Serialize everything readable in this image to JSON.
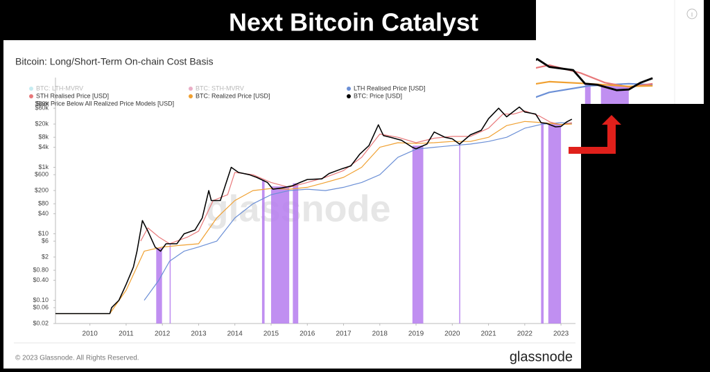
{
  "header": {
    "title": "Next Bitcoin Catalyst"
  },
  "chart_data": {
    "type": "line",
    "title": "Bitcoin: Long/Short-Term On-chain Cost Basis",
    "log_y": true,
    "grid": false,
    "xlim": [
      2009.05,
      2023.4
    ],
    "xticks": [
      2010,
      2011,
      2012,
      2013,
      2014,
      2015,
      2016,
      2017,
      2018,
      2019,
      2020,
      2021,
      2022,
      2023
    ],
    "ylim": [
      0.02,
      500000
    ],
    "yticks": [
      {
        "value": 0.02,
        "label": "$0.02"
      },
      {
        "value": 0.06,
        "label": "$0.06"
      },
      {
        "value": 0.1,
        "label": "$0.10"
      },
      {
        "value": 0.4,
        "label": "$0.40"
      },
      {
        "value": 0.8,
        "label": "$0.80"
      },
      {
        "value": 2,
        "label": "$2"
      },
      {
        "value": 6,
        "label": "$6"
      },
      {
        "value": 10,
        "label": "$10"
      },
      {
        "value": 40,
        "label": "$40"
      },
      {
        "value": 80,
        "label": "$80"
      },
      {
        "value": 200,
        "label": "$200"
      },
      {
        "value": 600,
        "label": "$600"
      },
      {
        "value": 1000,
        "label": "$1k"
      },
      {
        "value": 4000,
        "label": "$4k"
      },
      {
        "value": 8000,
        "label": "$8k"
      },
      {
        "value": 20000,
        "label": "$20k"
      },
      {
        "value": 60000,
        "label": "$60k"
      },
      {
        "value": 80000,
        "label": "$80k"
      }
    ],
    "inactive_legend": [
      {
        "name": "BTC: LTH-MVRV",
        "color": "#5bc8d8"
      },
      {
        "name": "BTC: STH-MVRV",
        "color": "#c2185b"
      }
    ],
    "series": [
      {
        "name": "LTH Realised Price [USD]",
        "color": "#6b8fd6",
        "x": [
          2011.5,
          2011.9,
          2012.2,
          2012.6,
          2013.0,
          2013.5,
          2014.0,
          2014.5,
          2015.0,
          2015.5,
          2016.0,
          2016.5,
          2017.0,
          2017.5,
          2018.0,
          2018.5,
          2019.0,
          2019.5,
          2020.0,
          2020.5,
          2021.0,
          2021.5,
          2022.0,
          2022.5,
          2023.0,
          2023.3
        ],
        "values": [
          0.1,
          0.4,
          1.5,
          3,
          4,
          6,
          30,
          80,
          150,
          200,
          220,
          200,
          250,
          350,
          600,
          2000,
          3500,
          4000,
          4500,
          5000,
          6000,
          8000,
          15000,
          20000,
          22000,
          21000
        ]
      },
      {
        "name": "STH Realised Price [USD]",
        "color": "#e8787a",
        "x": [
          2011.4,
          2011.6,
          2011.9,
          2012.2,
          2012.7,
          2013.0,
          2013.4,
          2013.8,
          2014.0,
          2014.5,
          2015.0,
          2015.5,
          2016.0,
          2016.5,
          2017.0,
          2017.5,
          2018.0,
          2018.5,
          2019.0,
          2019.5,
          2020.0,
          2020.5,
          2021.0,
          2021.4,
          2021.7,
          2022.0,
          2022.4,
          2022.7,
          2023.0,
          2023.3
        ],
        "values": [
          6,
          15,
          8,
          5,
          8,
          12,
          100,
          150,
          700,
          600,
          350,
          250,
          350,
          500,
          800,
          2000,
          10000,
          8000,
          5500,
          7500,
          8500,
          8500,
          15000,
          40000,
          40000,
          50000,
          35000,
          23000,
          19000,
          22000
        ]
      },
      {
        "name": "BTC: Realized Price [USD]",
        "color": "#f0a030",
        "x": [
          2009.05,
          2010.55,
          2011.0,
          2011.5,
          2012.0,
          2012.5,
          2013.0,
          2013.5,
          2014.0,
          2014.5,
          2015.0,
          2015.5,
          2016.0,
          2016.5,
          2017.0,
          2017.5,
          2018.0,
          2018.5,
          2019.0,
          2019.5,
          2020.0,
          2020.5,
          2021.0,
          2021.5,
          2022.0,
          2022.5,
          2023.0,
          2023.3
        ],
        "values": [
          0.04,
          0.04,
          0.2,
          3,
          4,
          4.5,
          5,
          30,
          100,
          200,
          230,
          220,
          250,
          350,
          500,
          1000,
          4000,
          5500,
          5200,
          5500,
          6000,
          6000,
          8000,
          18000,
          24000,
          22000,
          19500,
          20000
        ]
      },
      {
        "name": "BTC: Price [USD]",
        "color": "#000000",
        "x": [
          2009.05,
          2010.55,
          2010.6,
          2010.8,
          2011.0,
          2011.2,
          2011.3,
          2011.45,
          2011.6,
          2011.8,
          2011.95,
          2012.1,
          2012.4,
          2012.6,
          2012.9,
          2013.1,
          2013.28,
          2013.35,
          2013.6,
          2013.9,
          2014.1,
          2014.4,
          2014.6,
          2014.9,
          2015.05,
          2015.3,
          2015.6,
          2015.8,
          2016.0,
          2016.4,
          2016.6,
          2016.95,
          2017.2,
          2017.45,
          2017.7,
          2017.96,
          2018.1,
          2018.3,
          2018.6,
          2018.9,
          2019.0,
          2019.3,
          2019.5,
          2019.8,
          2020.0,
          2020.2,
          2020.5,
          2020.8,
          2021.0,
          2021.28,
          2021.5,
          2021.85,
          2022.0,
          2022.3,
          2022.45,
          2022.6,
          2022.85,
          2023.0,
          2023.15,
          2023.3
        ],
        "values": [
          0.04,
          0.04,
          0.06,
          0.1,
          0.3,
          1,
          3,
          25,
          12,
          4,
          3,
          5,
          5,
          10,
          13,
          30,
          200,
          100,
          100,
          1000,
          700,
          600,
          500,
          350,
          220,
          240,
          280,
          350,
          430,
          450,
          650,
          900,
          1100,
          2500,
          4500,
          19000,
          9000,
          8000,
          6500,
          4000,
          3600,
          5000,
          11500,
          8000,
          7200,
          5000,
          9500,
          13000,
          29000,
          60000,
          33000,
          65000,
          46000,
          40000,
          22000,
          21000,
          16500,
          17000,
          23000,
          28000
        ]
      }
    ],
    "bands": {
      "name": "Spot Price Below All Realized Price Models [USD]",
      "color": "#b57bee",
      "ranges": [
        [
          2011.83,
          2011.99
        ],
        [
          2012.2,
          2012.23
        ],
        [
          2014.75,
          2014.82
        ],
        [
          2015.0,
          2015.5
        ],
        [
          2015.6,
          2015.75
        ],
        [
          2018.9,
          2019.2
        ],
        [
          2020.19,
          2020.22
        ],
        [
          2022.45,
          2022.52
        ],
        [
          2022.65,
          2023.0
        ]
      ]
    },
    "inset": {
      "xlim": [
        2021.85,
        2023.9
      ],
      "ylim": [
        9000,
        260000
      ]
    },
    "watermark": "glassnode",
    "copyright": "© 2023 Glassnode. All Rights Reserved.",
    "logo": "glassnode"
  }
}
